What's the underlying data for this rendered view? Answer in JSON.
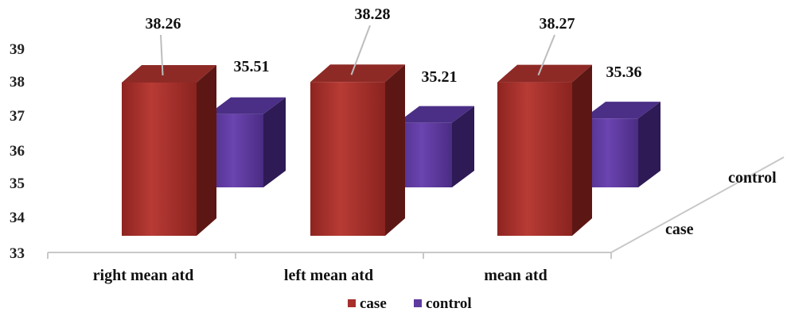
{
  "chart_data": {
    "type": "bar",
    "categories": [
      "right mean atd",
      "left mean atd",
      "mean atd"
    ],
    "series": [
      {
        "name": "case",
        "values": [
          38.26,
          38.28,
          38.27
        ],
        "labels": [
          "38.26",
          "38.28",
          "38.27"
        ],
        "color": "#a6302c"
      },
      {
        "name": "control",
        "values": [
          35.51,
          35.21,
          35.36
        ],
        "labels": [
          "35.51",
          "35.21",
          "35.36"
        ],
        "color": "#5e3a9e"
      }
    ],
    "ylim": [
      33,
      39
    ],
    "y_ticks": [
      "33",
      "34",
      "35",
      "36",
      "37",
      "38",
      "39"
    ],
    "legend_position": "bottom",
    "grid": false,
    "style": "3d-column"
  }
}
